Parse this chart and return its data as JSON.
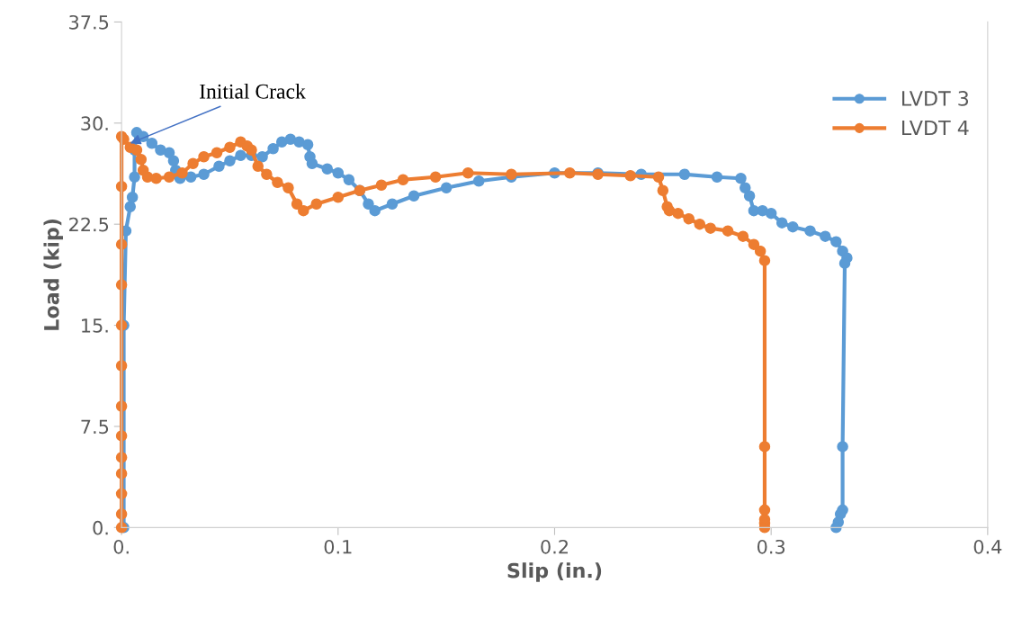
{
  "chart_data": {
    "type": "line",
    "xlabel": "Slip (in.)",
    "ylabel": "Load (kip)",
    "xlim": [
      0,
      0.4
    ],
    "xticks": [
      {
        "value": 0,
        "label": "0."
      },
      0.1,
      0.2,
      0.3,
      0.4
    ],
    "ylim": [
      0,
      37.5
    ],
    "yticks": [
      {
        "value": 0,
        "label": "0."
      },
      7.5,
      {
        "value": 15,
        "label": "15."
      },
      22.5,
      {
        "value": 30,
        "label": "30."
      },
      37.5
    ],
    "grid": false,
    "legend": "top right",
    "marker": "circle",
    "line_style": "solid",
    "annotations": [
      {
        "text": "Initial Crack",
        "x": 0.004,
        "y": 28.5
      }
    ],
    "series": [
      {
        "name": "LVDT 3",
        "color": "#5b9bd5",
        "x": [
          0.001,
          0.001,
          0.002,
          0.004,
          0.005,
          0.006,
          0.006,
          0.007,
          0.01,
          0.014,
          0.018,
          0.022,
          0.024,
          0.025,
          0.027,
          0.032,
          0.038,
          0.045,
          0.05,
          0.055,
          0.06,
          0.065,
          0.07,
          0.074,
          0.078,
          0.082,
          0.086,
          0.087,
          0.088,
          0.095,
          0.1,
          0.105,
          0.11,
          0.114,
          0.117,
          0.125,
          0.135,
          0.15,
          0.165,
          0.18,
          0.2,
          0.22,
          0.24,
          0.26,
          0.275,
          0.286,
          0.288,
          0.29,
          0.292,
          0.296,
          0.3,
          0.305,
          0.31,
          0.318,
          0.325,
          0.33,
          0.333,
          0.335,
          0.334,
          0.333,
          0.333,
          0.332,
          0.331,
          0.33
        ],
        "values": [
          0,
          15,
          22,
          23.8,
          24.5,
          26,
          28,
          29.3,
          29,
          28.5,
          28,
          27.8,
          27.2,
          26.5,
          25.9,
          26,
          26.2,
          26.8,
          27.2,
          27.6,
          27.6,
          27.5,
          28.1,
          28.6,
          28.8,
          28.6,
          28.4,
          27.5,
          27,
          26.6,
          26.3,
          25.8,
          25,
          24,
          23.5,
          24,
          24.6,
          25.2,
          25.7,
          26,
          26.3,
          26.3,
          26.2,
          26.2,
          26,
          25.9,
          25.2,
          24.6,
          23.5,
          23.5,
          23.3,
          22.6,
          22.3,
          22,
          21.6,
          21.2,
          20.5,
          20,
          19.6,
          6,
          1.3,
          1,
          0.4,
          0
        ]
      },
      {
        "name": "LVDT 4",
        "color": "#ed7d31",
        "x": [
          0,
          0,
          0,
          0,
          0,
          0,
          0,
          0,
          0,
          0,
          0,
          0,
          0.0,
          0.001,
          0.004,
          0.007,
          0.009,
          0.01,
          0.012,
          0.016,
          0.022,
          0.028,
          0.033,
          0.038,
          0.044,
          0.05,
          0.055,
          0.058,
          0.06,
          0.063,
          0.067,
          0.072,
          0.077,
          0.081,
          0.084,
          0.09,
          0.1,
          0.11,
          0.12,
          0.13,
          0.145,
          0.16,
          0.18,
          0.207,
          0.22,
          0.235,
          0.248,
          0.25,
          0.252,
          0.253,
          0.257,
          0.262,
          0.267,
          0.272,
          0.28,
          0.287,
          0.292,
          0.295,
          0.297,
          0.297,
          0.297,
          0.297,
          0.297,
          0.297
        ],
        "values": [
          0,
          1,
          2.5,
          4,
          5.2,
          6.8,
          9,
          12,
          15,
          18,
          21,
          25.3,
          29,
          28.8,
          28.2,
          28,
          27.3,
          26.5,
          26,
          25.9,
          26,
          26.3,
          27,
          27.5,
          27.8,
          28.2,
          28.6,
          28.3,
          28,
          26.8,
          26.2,
          25.6,
          25.2,
          24,
          23.5,
          24,
          24.5,
          25,
          25.4,
          25.8,
          26,
          26.3,
          26.2,
          26.3,
          26.2,
          26.1,
          26,
          25,
          23.8,
          23.5,
          23.3,
          22.9,
          22.5,
          22.2,
          22,
          21.6,
          21,
          20.5,
          19.8,
          6,
          1.3,
          0.6,
          0.3,
          0
        ]
      }
    ]
  }
}
